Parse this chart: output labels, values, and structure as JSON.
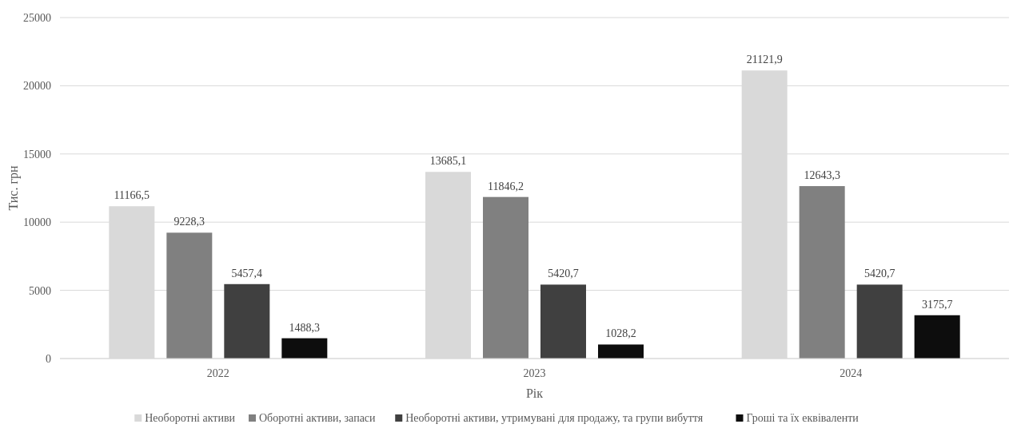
{
  "chart_data": {
    "type": "bar",
    "xlabel": "Рік",
    "ylabel": "Тис. грн",
    "categories": [
      "2022",
      "2023",
      "2024"
    ],
    "series": [
      {
        "name": "Необоротні активи",
        "color": "#d9d9d9",
        "values": [
          11166.5,
          13685.1,
          21121.9
        ],
        "value_labels": [
          "11166,5",
          "13685,1",
          "21121,9"
        ]
      },
      {
        "name": "Оборотні активи, запаси",
        "color": "#808080",
        "values": [
          9228.3,
          11846.2,
          12643.3
        ],
        "value_labels": [
          "9228,3",
          "11846,2",
          "12643,3"
        ]
      },
      {
        "name": "Необоротні активи, утримувані для продажу, та групи вибуття",
        "color": "#404040",
        "values": [
          5457.4,
          5420.7,
          5420.7
        ],
        "value_labels": [
          "5457,4",
          "5420,7",
          "5420,7"
        ]
      },
      {
        "name": "Гроші та їх еквіваленти",
        "color": "#0d0d0d",
        "values": [
          1488.3,
          1028.2,
          3175.7
        ],
        "value_labels": [
          "1488,3",
          "1028,2",
          "3175,7"
        ]
      }
    ],
    "ylim": [
      0,
      25000
    ],
    "yticks": [
      0,
      5000,
      10000,
      15000,
      20000,
      25000
    ],
    "grid": "y",
    "legend": "bottom"
  }
}
